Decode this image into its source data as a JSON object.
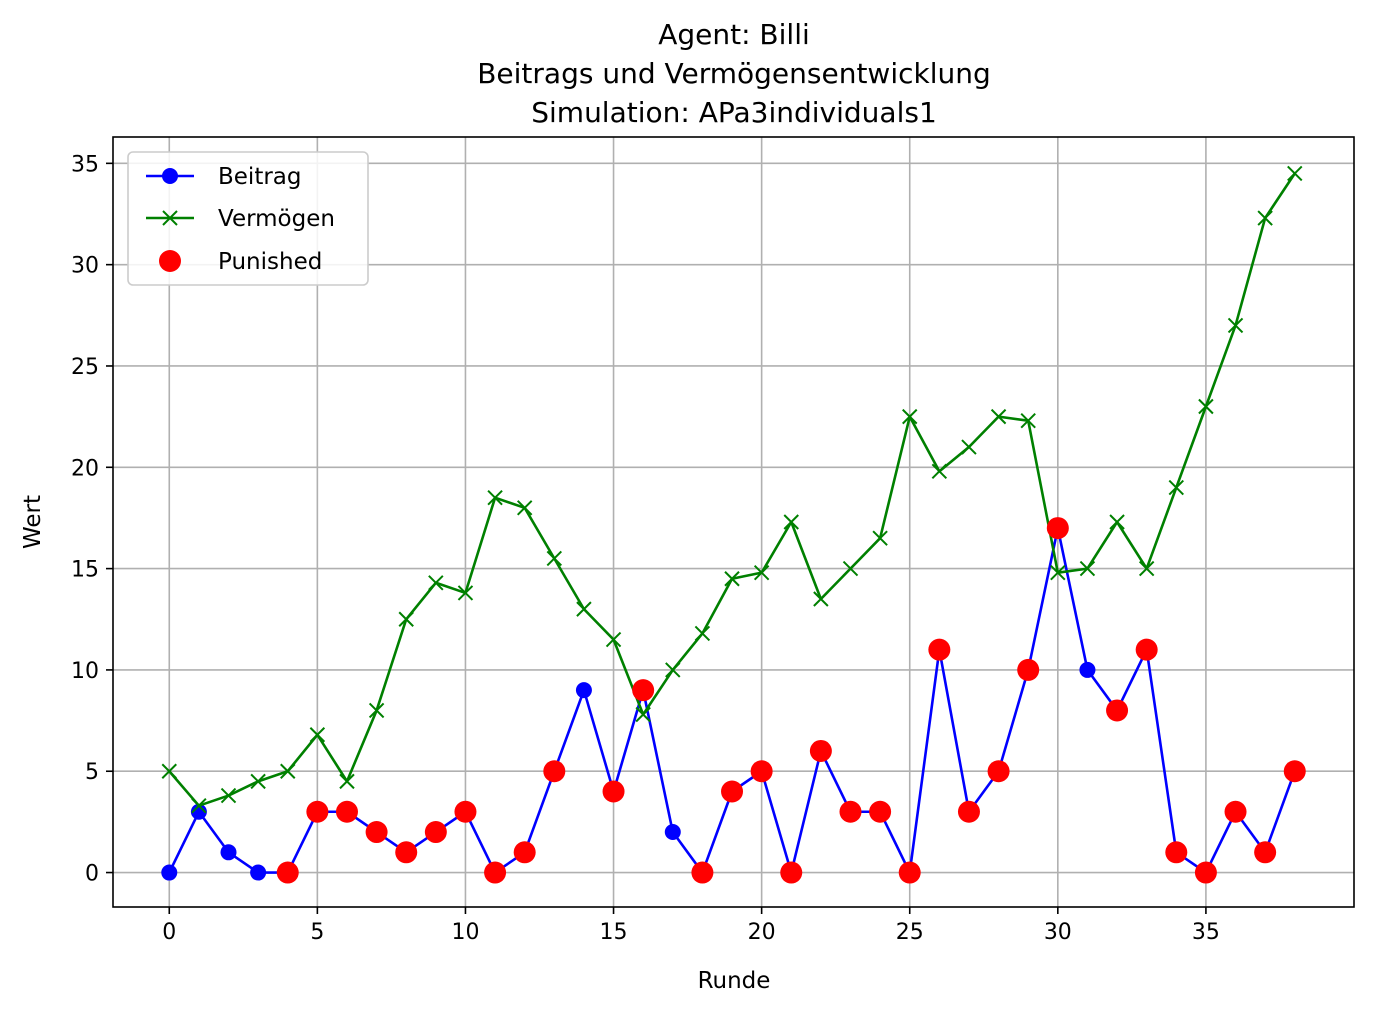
{
  "chart_data": {
    "type": "line",
    "title_lines": [
      "Agent: Billi",
      "Beitrags und Vermögensentwicklung",
      "Simulation: APa3individuals1"
    ],
    "xlabel": "Runde",
    "ylabel": "Wert",
    "xlim": [
      -1.9,
      40.0
    ],
    "ylim": [
      -1.7,
      36.3
    ],
    "xticks": [
      0,
      5,
      10,
      15,
      20,
      25,
      30,
      35
    ],
    "yticks": [
      0,
      5,
      10,
      15,
      20,
      25,
      30,
      35
    ],
    "grid": true,
    "legend_position": "top-left",
    "x": [
      0,
      1,
      2,
      3,
      4,
      5,
      6,
      7,
      8,
      9,
      10,
      11,
      12,
      13,
      14,
      15,
      16,
      17,
      18,
      19,
      20,
      21,
      22,
      23,
      24,
      25,
      26,
      27,
      28,
      29,
      30,
      31,
      32,
      33,
      34,
      35,
      36,
      37,
      38
    ],
    "series": [
      {
        "name": "Beitrag",
        "color": "#0000ff",
        "marker": "circle",
        "values": [
          0,
          3,
          1,
          0,
          0,
          3,
          3,
          2,
          1,
          2,
          3,
          0,
          1,
          5,
          9,
          4,
          9,
          2,
          0,
          4,
          5,
          0,
          6,
          3,
          3,
          0,
          11,
          3,
          5,
          10,
          17,
          10,
          8,
          11,
          1,
          0,
          3,
          1,
          5
        ]
      },
      {
        "name": "Vermögen",
        "color": "#008000",
        "marker": "x",
        "values": [
          5,
          3.3,
          3.8,
          4.5,
          5,
          6.8,
          4.5,
          8,
          12.5,
          14.3,
          13.8,
          18.5,
          18,
          15.5,
          13,
          11.5,
          7.8,
          10,
          11.8,
          14.5,
          14.8,
          17.3,
          13.5,
          15,
          16.5,
          22.5,
          19.8,
          21,
          22.5,
          22.3,
          14.8,
          15,
          17.3,
          15,
          19,
          23,
          27,
          32.3,
          34.5
        ]
      }
    ],
    "punished": {
      "name": "Punished",
      "color": "#ff0000",
      "x": [
        4,
        5,
        6,
        7,
        8,
        9,
        10,
        11,
        12,
        13,
        15,
        16,
        18,
        19,
        20,
        21,
        22,
        23,
        24,
        25,
        26,
        27,
        28,
        29,
        30,
        32,
        33,
        34,
        35,
        36,
        37,
        38
      ],
      "values": [
        0,
        3,
        3,
        2,
        1,
        2,
        3,
        0,
        1,
        5,
        4,
        9,
        0,
        4,
        5,
        0,
        6,
        3,
        3,
        0,
        11,
        3,
        5,
        10,
        17,
        8,
        11,
        1,
        0,
        3,
        1,
        5
      ]
    }
  }
}
